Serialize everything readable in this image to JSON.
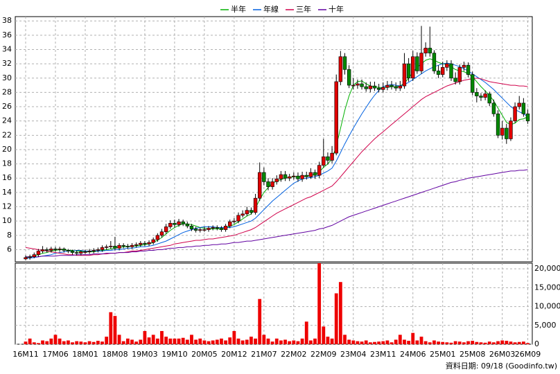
{
  "chart_data": {
    "type": "candlestick",
    "categories": [
      "16M11",
      null,
      null,
      null,
      null,
      null,
      null,
      "17M06",
      null,
      null,
      null,
      null,
      null,
      null,
      "18M01",
      null,
      null,
      null,
      null,
      null,
      null,
      "18M08",
      null,
      null,
      null,
      null,
      null,
      null,
      "19M03",
      null,
      null,
      null,
      null,
      null,
      null,
      "19M10",
      null,
      null,
      null,
      null,
      null,
      null,
      "20M05",
      null,
      null,
      null,
      null,
      null,
      null,
      "20M12",
      null,
      null,
      null,
      null,
      null,
      null,
      "21M07",
      null,
      null,
      null,
      null,
      null,
      null,
      "22M02",
      null,
      null,
      null,
      null,
      null,
      null,
      "22M09",
      null,
      null,
      null,
      null,
      null,
      null,
      "23M04",
      null,
      null,
      null,
      null,
      null,
      null,
      "23M11",
      null,
      null,
      null,
      null,
      null,
      null,
      "24M06",
      null,
      null,
      null,
      null,
      null,
      null,
      "25M01",
      null,
      null,
      null,
      null,
      null,
      null,
      "25M08",
      null,
      null,
      null,
      null,
      null,
      null,
      "26M03",
      null,
      null,
      null,
      null,
      null,
      "26M09"
    ],
    "open": [
      4.7,
      4.9,
      5.0,
      5.3,
      5.8,
      6.0,
      5.9,
      6.1,
      6.0,
      6.1,
      5.9,
      5.8,
      5.6,
      5.5,
      5.7,
      5.7,
      5.8,
      5.9,
      6.0,
      6.3,
      6.4,
      6.5,
      6.2,
      6.6,
      6.5,
      6.4,
      6.6,
      6.7,
      6.9,
      6.8,
      7.0,
      7.4,
      8.0,
      8.5,
      9.2,
      9.7,
      9.5,
      9.9,
      9.6,
      9.3,
      8.9,
      8.7,
      8.8,
      8.8,
      9.0,
      9.1,
      9.0,
      8.8,
      9.3,
      9.9,
      10.0,
      10.8,
      11.0,
      11.5,
      11.2,
      13.2,
      16.8,
      15.5,
      14.8,
      15.5,
      15.9,
      16.5,
      16.0,
      16.2,
      16.3,
      15.9,
      16.4,
      16.2,
      16.8,
      16.4,
      17.8,
      19.0,
      18.5,
      19.5,
      29.5,
      33.0,
      31.2,
      29.0,
      29.0,
      29.2,
      28.8,
      28.5,
      28.9,
      28.6,
      28.4,
      28.7,
      29.0,
      28.8,
      28.6,
      28.9,
      32.0,
      30.0,
      33.0,
      31.0,
      33.5,
      34.2,
      33.5,
      31.0,
      30.5,
      31.5,
      32.0,
      30.0,
      29.5,
      31.5,
      31.8,
      30.5,
      28.0,
      27.5,
      27.3,
      27.8,
      26.5,
      25.0,
      22.0,
      23.0,
      21.5,
      24.0,
      26.0,
      26.5,
      25.0
    ],
    "high": [
      5.2,
      5.3,
      5.6,
      6.1,
      6.5,
      6.3,
      6.4,
      6.4,
      6.4,
      6.3,
      6.1,
      6.0,
      5.9,
      5.9,
      6.0,
      6.1,
      6.2,
      6.3,
      6.6,
      6.7,
      7.2,
      7.8,
      6.9,
      6.9,
      6.8,
      6.9,
      7.0,
      7.2,
      7.2,
      7.3,
      7.7,
      8.3,
      8.9,
      9.6,
      10.1,
      10.2,
      10.3,
      10.2,
      9.9,
      9.6,
      9.2,
      9.1,
      9.2,
      9.3,
      9.4,
      9.4,
      9.3,
      9.6,
      10.2,
      10.4,
      11.2,
      11.5,
      12.0,
      11.9,
      13.8,
      18.2,
      17.5,
      16.0,
      16.0,
      16.4,
      17.0,
      17.0,
      16.6,
      16.8,
      16.8,
      16.9,
      16.9,
      17.4,
      17.2,
      18.3,
      21.5,
      19.6,
      20.5,
      30.5,
      33.8,
      33.5,
      31.8,
      30.0,
      29.8,
      29.8,
      29.4,
      29.5,
      29.5,
      29.2,
      29.4,
      29.6,
      29.6,
      29.4,
      29.6,
      33.5,
      32.8,
      33.8,
      33.6,
      37.3,
      35.0,
      37.2,
      33.9,
      31.8,
      32.3,
      32.5,
      32.5,
      30.8,
      31.9,
      32.3,
      32.2,
      30.9,
      28.6,
      27.9,
      28.3,
      28.1,
      27.0,
      25.5,
      24.0,
      23.6,
      24.5,
      26.6,
      27.5,
      27.2,
      25.6
    ],
    "low": [
      4.5,
      4.6,
      4.8,
      5.0,
      5.5,
      5.6,
      5.6,
      5.7,
      5.7,
      5.6,
      5.5,
      5.3,
      5.2,
      5.2,
      5.4,
      5.4,
      5.5,
      5.6,
      5.7,
      6.0,
      6.1,
      5.9,
      5.9,
      6.2,
      6.1,
      6.1,
      6.3,
      6.4,
      6.5,
      6.5,
      6.7,
      7.1,
      7.7,
      8.2,
      8.9,
      9.1,
      9.2,
      9.3,
      9.0,
      8.6,
      8.4,
      8.4,
      8.5,
      8.5,
      8.7,
      8.7,
      8.5,
      8.5,
      9.0,
      9.6,
      9.7,
      10.5,
      10.7,
      10.9,
      10.9,
      12.8,
      15.0,
      14.3,
      14.4,
      15.1,
      15.5,
      15.6,
      15.6,
      15.8,
      15.5,
      15.5,
      15.8,
      15.9,
      15.9,
      16.0,
      17.5,
      17.9,
      18.1,
      19.2,
      29.0,
      30.5,
      28.6,
      28.4,
      28.5,
      28.4,
      28.1,
      28.0,
      28.2,
      28.0,
      28.0,
      28.3,
      28.4,
      28.2,
      28.2,
      28.5,
      29.5,
      29.6,
      30.6,
      30.6,
      33.0,
      33.0,
      30.6,
      30.0,
      30.1,
      31.0,
      29.6,
      29.1,
      29.1,
      31.0,
      30.1,
      27.6,
      26.6,
      26.8,
      26.9,
      26.1,
      24.6,
      21.6,
      21.4,
      20.8,
      21.2,
      23.7,
      25.6,
      24.6,
      23.6
    ],
    "close": [
      4.9,
      5.0,
      5.3,
      5.8,
      6.0,
      5.9,
      6.1,
      6.0,
      6.1,
      5.9,
      5.8,
      5.6,
      5.5,
      5.7,
      5.7,
      5.8,
      5.9,
      6.0,
      6.3,
      6.4,
      6.5,
      6.2,
      6.6,
      6.5,
      6.4,
      6.6,
      6.7,
      6.9,
      6.8,
      7.0,
      7.4,
      8.0,
      8.5,
      9.2,
      9.7,
      9.5,
      9.9,
      9.6,
      9.3,
      8.9,
      8.7,
      8.8,
      8.8,
      9.0,
      9.1,
      9.0,
      8.8,
      9.3,
      9.9,
      10.0,
      10.8,
      11.0,
      11.5,
      11.2,
      13.2,
      16.8,
      15.5,
      14.8,
      15.5,
      15.9,
      16.5,
      16.0,
      16.2,
      16.3,
      15.9,
      16.4,
      16.2,
      16.8,
      16.4,
      17.8,
      19.0,
      18.5,
      19.5,
      29.5,
      33.0,
      31.2,
      29.0,
      29.0,
      29.2,
      28.8,
      28.5,
      28.9,
      28.6,
      28.4,
      28.7,
      29.0,
      28.8,
      28.6,
      28.9,
      32.0,
      30.0,
      33.0,
      31.0,
      33.5,
      34.2,
      33.5,
      31.0,
      30.5,
      31.5,
      32.0,
      30.0,
      29.5,
      31.5,
      31.8,
      30.5,
      28.0,
      27.5,
      27.3,
      27.8,
      26.5,
      25.0,
      22.0,
      23.0,
      21.5,
      24.0,
      26.0,
      26.5,
      25.0,
      24.0
    ],
    "volume": [
      700,
      1500,
      500,
      300,
      1000,
      800,
      1500,
      2500,
      1500,
      800,
      1000,
      500,
      800,
      700,
      500,
      800,
      600,
      900,
      700,
      2000,
      8500,
      7500,
      2500,
      800,
      1500,
      1200,
      700,
      1200,
      3500,
      1800,
      2500,
      1500,
      3500,
      2000,
      1500,
      1500,
      1500,
      1700,
      1200,
      2500,
      1200,
      1500,
      1000,
      800,
      1000,
      1200,
      1500,
      1000,
      1800,
      3500,
      1500,
      1000,
      1200,
      2000,
      1500,
      12000,
      2500,
      1500,
      700,
      1500,
      1000,
      1200,
      800,
      1000,
      800,
      1500,
      6000,
      1000,
      1500,
      21500,
      4700,
      2000,
      1500,
      13500,
      16500,
      2500,
      1200,
      1000,
      800,
      700,
      1000,
      500,
      600,
      700,
      800,
      1000,
      500,
      1200,
      2500,
      1200,
      900,
      3000,
      1000,
      2000,
      800,
      500,
      1000,
      700,
      600,
      500,
      400,
      800,
      700,
      500,
      800,
      900,
      600,
      500,
      400,
      700,
      500,
      800,
      1000,
      900,
      700,
      500,
      600,
      700,
      300
    ],
    "series": [
      {
        "name": "半年",
        "color": "#00b000",
        "values": [
          4.9,
          5.0,
          5.1,
          5.3,
          5.5,
          5.6,
          5.8,
          5.9,
          6.0,
          6.0,
          5.9,
          5.9,
          5.8,
          5.8,
          5.7,
          5.7,
          5.7,
          5.8,
          5.9,
          6.0,
          6.1,
          6.2,
          6.3,
          6.4,
          6.4,
          6.5,
          6.5,
          6.6,
          6.7,
          6.8,
          7.0,
          7.3,
          7.7,
          8.2,
          8.7,
          9.1,
          9.4,
          9.6,
          9.6,
          9.5,
          9.3,
          9.1,
          9.0,
          8.9,
          8.9,
          8.9,
          8.9,
          9.0,
          9.3,
          9.5,
          9.9,
          10.3,
          10.7,
          11.0,
          11.8,
          13.0,
          14.0,
          14.7,
          15.3,
          15.6,
          15.8,
          16.0,
          16.1,
          16.2,
          16.2,
          16.3,
          16.3,
          16.4,
          16.5,
          16.9,
          17.5,
          18.0,
          18.7,
          20.5,
          23.0,
          25.5,
          27.5,
          29.0,
          29.5,
          29.6,
          29.2,
          28.9,
          28.8,
          28.7,
          28.7,
          28.7,
          28.8,
          28.8,
          28.9,
          29.3,
          30.0,
          30.8,
          31.5,
          32.0,
          32.5,
          32.7,
          32.5,
          32.2,
          32.0,
          31.9,
          31.6,
          31.2,
          31.0,
          30.9,
          30.6,
          30.2,
          29.5,
          28.8,
          28.2,
          27.6,
          26.8,
          25.8,
          24.8,
          23.8,
          23.5,
          23.7,
          24.2,
          24.3,
          24.6
        ]
      },
      {
        "name": "年線",
        "color": "#0060e0",
        "values": [
          4.8,
          4.8,
          4.9,
          5.0,
          5.1,
          5.2,
          5.3,
          5.5,
          5.6,
          5.7,
          5.8,
          5.8,
          5.9,
          5.9,
          5.8,
          5.8,
          5.8,
          5.8,
          5.8,
          5.9,
          5.9,
          6.0,
          6.0,
          6.1,
          6.2,
          6.2,
          6.3,
          6.4,
          6.4,
          6.5,
          6.6,
          6.8,
          7.0,
          7.2,
          7.5,
          7.8,
          8.1,
          8.4,
          8.6,
          8.8,
          9.0,
          9.1,
          9.2,
          9.2,
          9.2,
          9.1,
          9.1,
          9.1,
          9.1,
          9.2,
          9.4,
          9.6,
          9.8,
          10.0,
          10.4,
          11.0,
          11.6,
          12.2,
          12.8,
          13.3,
          13.8,
          14.3,
          14.8,
          15.3,
          15.6,
          15.9,
          16.0,
          16.1,
          16.2,
          16.4,
          16.7,
          17.0,
          17.4,
          18.4,
          19.6,
          20.8,
          21.9,
          23.0,
          24.0,
          25.0,
          25.9,
          26.8,
          27.6,
          28.3,
          28.8,
          29.0,
          29.1,
          29.0,
          28.9,
          29.1,
          29.4,
          29.8,
          30.2,
          30.6,
          31.0,
          31.3,
          31.6,
          31.8,
          32.0,
          32.1,
          32.0,
          31.8,
          31.6,
          31.3,
          31.0,
          30.6,
          30.2,
          29.8,
          29.4,
          28.9,
          28.4,
          27.8,
          27.2,
          26.6,
          26.0,
          25.6,
          25.3,
          25.0,
          24.6
        ]
      },
      {
        "name": "三年",
        "color": "#d0004a",
        "values": [
          6.3,
          6.2,
          6.1,
          6.0,
          5.9,
          5.8,
          5.7,
          5.6,
          5.5,
          5.4,
          5.3,
          5.3,
          5.2,
          5.2,
          5.2,
          5.2,
          5.3,
          5.3,
          5.4,
          5.4,
          5.5,
          5.5,
          5.6,
          5.6,
          5.7,
          5.8,
          5.8,
          5.9,
          6.0,
          6.1,
          6.2,
          6.3,
          6.4,
          6.5,
          6.6,
          6.8,
          6.9,
          7.0,
          7.1,
          7.2,
          7.3,
          7.3,
          7.4,
          7.5,
          7.5,
          7.6,
          7.7,
          7.8,
          7.9,
          8.0,
          8.2,
          8.4,
          8.6,
          8.8,
          9.1,
          9.5,
          9.9,
          10.3,
          10.7,
          11.1,
          11.4,
          11.7,
          12.0,
          12.3,
          12.6,
          12.9,
          13.2,
          13.4,
          13.7,
          14.0,
          14.3,
          14.6,
          14.9,
          15.5,
          16.2,
          16.9,
          17.6,
          18.3,
          19.0,
          19.7,
          20.3,
          20.9,
          21.5,
          22.0,
          22.5,
          23.0,
          23.5,
          24.0,
          24.5,
          25.0,
          25.5,
          26.0,
          26.5,
          27.0,
          27.4,
          27.7,
          28.0,
          28.3,
          28.6,
          28.9,
          29.1,
          29.3,
          29.5,
          29.7,
          29.8,
          29.9,
          30.0,
          29.9,
          29.7,
          29.5,
          29.4,
          29.3,
          29.2,
          29.1,
          29.0,
          29.0,
          28.9,
          28.9,
          28.8
        ]
      },
      {
        "name": "十年",
        "color": "#6000a0",
        "values": [
          5.0,
          5.0,
          5.0,
          5.0,
          5.1,
          5.1,
          5.1,
          5.1,
          5.2,
          5.2,
          5.2,
          5.2,
          5.3,
          5.3,
          5.3,
          5.3,
          5.4,
          5.4,
          5.4,
          5.5,
          5.5,
          5.5,
          5.6,
          5.6,
          5.6,
          5.7,
          5.7,
          5.8,
          5.8,
          5.9,
          5.9,
          6.0,
          6.0,
          6.1,
          6.2,
          6.2,
          6.3,
          6.3,
          6.4,
          6.4,
          6.5,
          6.5,
          6.6,
          6.6,
          6.7,
          6.7,
          6.8,
          6.8,
          6.9,
          7.0,
          7.0,
          7.1,
          7.2,
          7.2,
          7.3,
          7.4,
          7.5,
          7.6,
          7.7,
          7.8,
          7.9,
          8.0,
          8.1,
          8.2,
          8.3,
          8.4,
          8.5,
          8.6,
          8.7,
          8.9,
          9.0,
          9.2,
          9.4,
          9.7,
          10.0,
          10.3,
          10.6,
          10.8,
          11.0,
          11.2,
          11.4,
          11.6,
          11.8,
          12.0,
          12.2,
          12.4,
          12.6,
          12.8,
          13.0,
          13.2,
          13.4,
          13.6,
          13.8,
          14.0,
          14.2,
          14.4,
          14.6,
          14.8,
          15.0,
          15.2,
          15.4,
          15.5,
          15.7,
          15.8,
          16.0,
          16.1,
          16.2,
          16.3,
          16.4,
          16.5,
          16.6,
          16.7,
          16.8,
          16.9,
          17.0,
          17.0,
          17.1,
          17.1,
          17.2
        ]
      }
    ],
    "up_color": "#e00000",
    "down_color": "#008800",
    "volume_color": "#ee0000",
    "ylim": [
      4.3,
      38.6
    ],
    "yticks": [
      6,
      8,
      10,
      12,
      14,
      16,
      18,
      20,
      22,
      24,
      26,
      28,
      30,
      32,
      34,
      36,
      38
    ],
    "volume_ylim": [
      0,
      21500
    ],
    "volume_yticks": [
      0,
      {
        "value": 5000,
        "label": "5,000"
      },
      {
        "value": 10000,
        "label": "10,000"
      },
      {
        "value": 15000,
        "label": "15,000"
      },
      {
        "value": 20000,
        "label": "20,000"
      }
    ],
    "grid": true,
    "legend": "top",
    "source": "資料日期: 09/18 (Goodinfo.tw)"
  }
}
